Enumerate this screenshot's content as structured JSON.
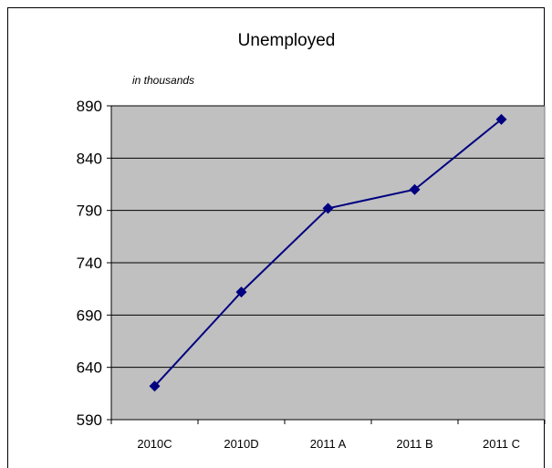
{
  "chart_data": {
    "type": "line",
    "title": "Unemployed",
    "subtitle": "in thousands",
    "categories": [
      "2010C",
      "2010D",
      "2011 A",
      "2011 B",
      "2011 C"
    ],
    "series": [
      {
        "values": [
          622,
          712,
          792,
          810,
          877
        ]
      }
    ],
    "yticks": [
      590,
      640,
      690,
      740,
      790,
      840,
      890
    ],
    "ylim": [
      590,
      890
    ],
    "grid": true,
    "legend": "none",
    "colors": {
      "line": "#000080",
      "marker": "#000080",
      "plot_bg": "#c0c0c0"
    }
  }
}
